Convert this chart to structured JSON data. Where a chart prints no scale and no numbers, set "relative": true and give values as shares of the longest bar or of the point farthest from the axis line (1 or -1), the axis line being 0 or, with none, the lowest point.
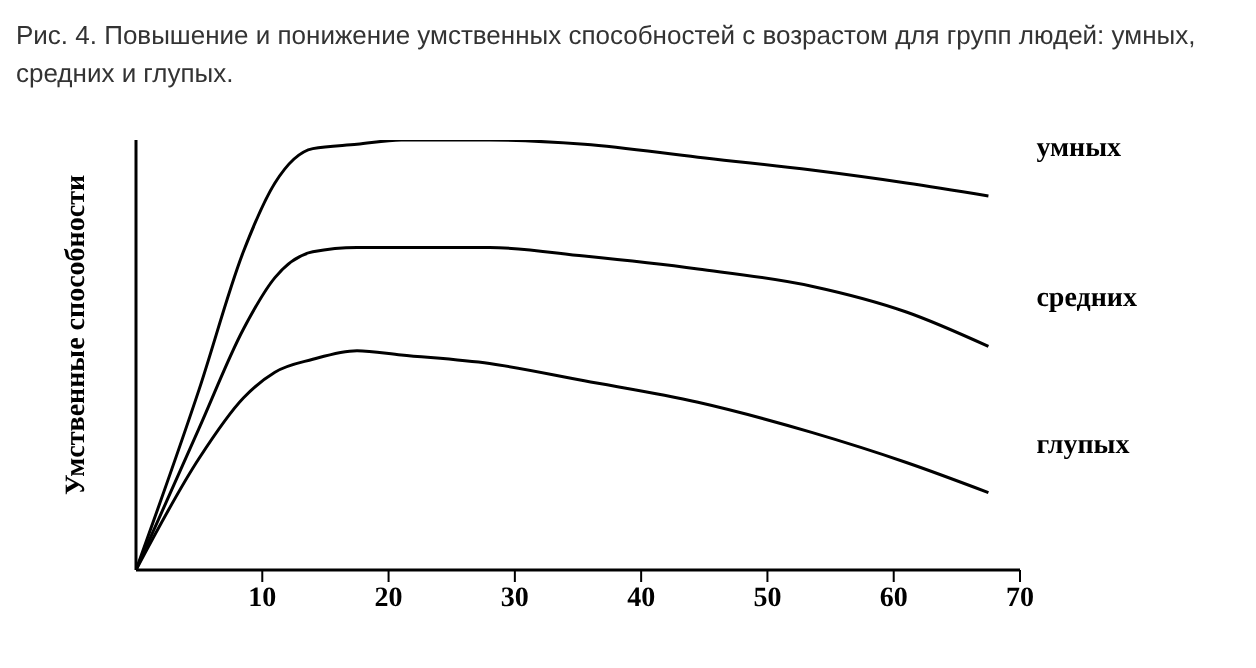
{
  "chart_data": {
    "type": "line",
    "title": "Рис. 4. Повышение  и понижение  умственных способностей  с возрастом для групп людей: умных, средних и глупых.",
    "ylabel": "Умственные способности",
    "relative": true,
    "xlim": [
      0,
      70
    ],
    "xticks": [
      10,
      20,
      30,
      40,
      50,
      60,
      70
    ],
    "legend": false,
    "grid": false,
    "marker": "none",
    "line_style": "solid",
    "x": [
      0,
      5,
      8.5,
      11,
      14,
      17.5,
      21,
      28,
      35.5,
      44.5,
      53.5,
      61,
      67.5
    ],
    "series": [
      {
        "name": "умных",
        "color": "#000000",
        "values": [
          0,
          0.42,
          0.74,
          0.9,
          0.98,
          0.99,
          1.0,
          1.0,
          0.99,
          0.96,
          0.93,
          0.9,
          0.87
        ]
      },
      {
        "name": "средних",
        "color": "#000000",
        "values": [
          0,
          0.33,
          0.56,
          0.68,
          0.74,
          0.75,
          0.75,
          0.75,
          0.73,
          0.7,
          0.66,
          0.6,
          0.52
        ]
      },
      {
        "name": "глупых",
        "color": "#000000",
        "values": [
          0,
          0.26,
          0.4,
          0.46,
          0.49,
          0.51,
          0.5,
          0.48,
          0.44,
          0.39,
          0.32,
          0.25,
          0.18
        ]
      }
    ]
  }
}
